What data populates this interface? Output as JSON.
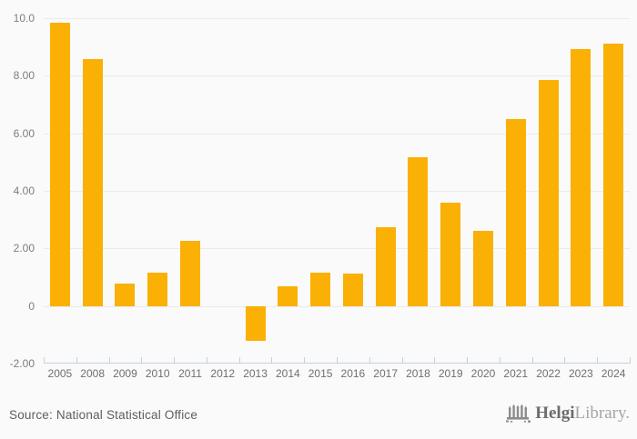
{
  "chart_data": {
    "type": "bar",
    "title": "",
    "xlabel": "",
    "ylabel": "",
    "categories": [
      "2005",
      "2008",
      "2009",
      "2010",
      "2011",
      "2012",
      "2013",
      "2014",
      "2015",
      "2016",
      "2017",
      "2018",
      "2019",
      "2020",
      "2021",
      "2022",
      "2023",
      "2024"
    ],
    "values": [
      9.85,
      8.57,
      0.78,
      1.16,
      2.27,
      0,
      -1.2,
      0.69,
      1.16,
      1.12,
      2.75,
      5.16,
      3.58,
      2.62,
      6.51,
      7.86,
      8.94,
      9.11
    ],
    "ylim": [
      -2,
      10
    ],
    "ytick_values": [
      10,
      8,
      6,
      4,
      2,
      0,
      -2
    ],
    "ytick_labels": [
      "10.0",
      "8.00",
      "6.00",
      "4.00",
      "2.00",
      "0",
      "-2.00"
    ],
    "grid": true,
    "legend": "none",
    "bar_color": "#FAB005",
    "gridline_color": "#ebebeb",
    "axis_color": "#c4cfe4",
    "background_color": "#fafafa"
  },
  "footer": {
    "source_label": "Source: National Statistical Office",
    "logo": {
      "icon": "bridge-icon",
      "brand_bold": "Helgi",
      "brand_light": "Library."
    }
  }
}
